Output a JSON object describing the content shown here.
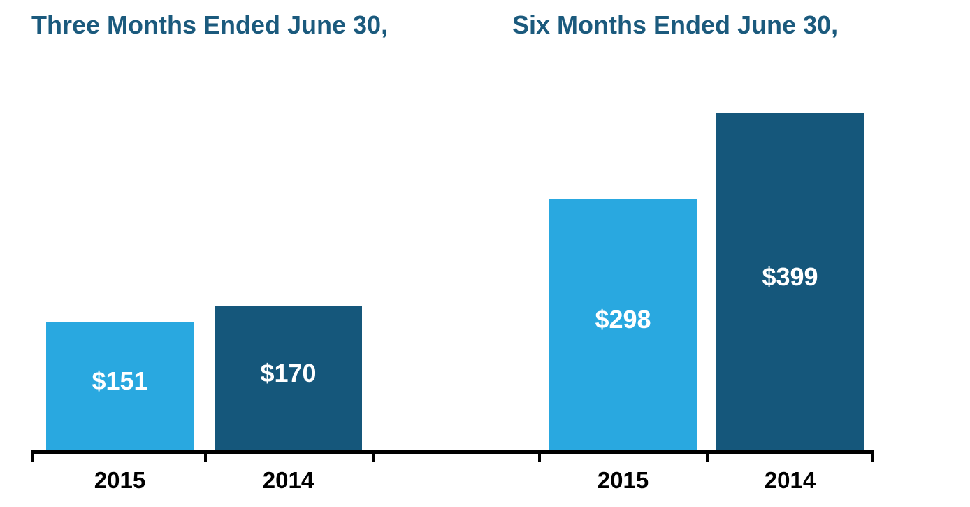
{
  "page": {
    "background_color": "#FFFFFF"
  },
  "colors": {
    "light_blue_bar": "#29A8E0",
    "dark_blue_bar": "#15577B",
    "title_text": "#1B5A7D",
    "axis_and_labels": "#000000",
    "bar_value_text": "#FFFFFF"
  },
  "chart_data": {
    "type": "bar",
    "categories": [
      "Three Months Ended June 30,",
      "Six Months Ended June 30,"
    ],
    "series": [
      {
        "name": "2015",
        "values": [
          151,
          298
        ],
        "color": "#29A8E0"
      },
      {
        "name": "2014",
        "values": [
          170,
          399
        ],
        "color": "#15577B"
      }
    ],
    "data_labels": [
      [
        "$151",
        "$298"
      ],
      [
        "$170",
        "$399"
      ]
    ],
    "x_tick_labels": [
      "2015",
      "2014",
      "2015",
      "2014"
    ],
    "value_prefix": "$",
    "ylabel": "",
    "xlabel": "",
    "ylim": [
      0,
      450
    ],
    "grid": false,
    "legend": "none",
    "y_axis_visible": false,
    "x_axis_visible": true
  }
}
